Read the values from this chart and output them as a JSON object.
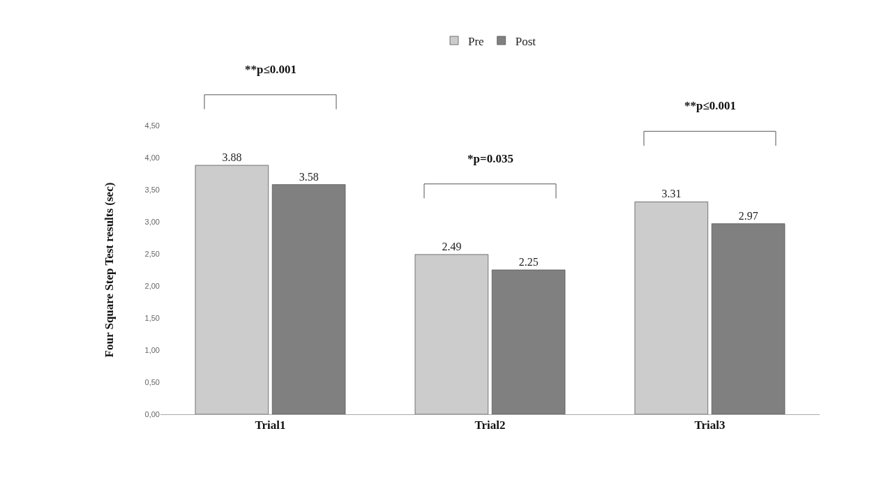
{
  "chart_data": {
    "type": "bar",
    "categories": [
      "Trial1",
      "Trial2",
      "Trial3"
    ],
    "series": [
      {
        "name": "Pre",
        "color": "#cccccc",
        "values": [
          3.88,
          2.49,
          3.31
        ]
      },
      {
        "name": "Post",
        "color": "#808080",
        "values": [
          3.58,
          2.25,
          2.97
        ]
      }
    ],
    "ylabel": "Four Square Step Test results (sec)",
    "ylim": [
      0,
      4.5
    ],
    "yticks": [
      {
        "value": 0,
        "label": "0,00"
      },
      {
        "value": 0.5,
        "label": "0,50"
      },
      {
        "value": 1,
        "label": "1,00"
      },
      {
        "value": 1.5,
        "label": "1,50"
      },
      {
        "value": 2,
        "label": "2,00"
      },
      {
        "value": 2.5,
        "label": "2,50"
      },
      {
        "value": 3,
        "label": "3,00"
      },
      {
        "value": 3.5,
        "label": "3,50"
      },
      {
        "value": 4,
        "label": "4,00"
      },
      {
        "value": 4.5,
        "label": "4,50"
      }
    ],
    "annotations": [
      "**p≤0.001",
      "*p=0.035",
      "**p≤0.001"
    ],
    "data_labels": true,
    "legend": "top"
  }
}
